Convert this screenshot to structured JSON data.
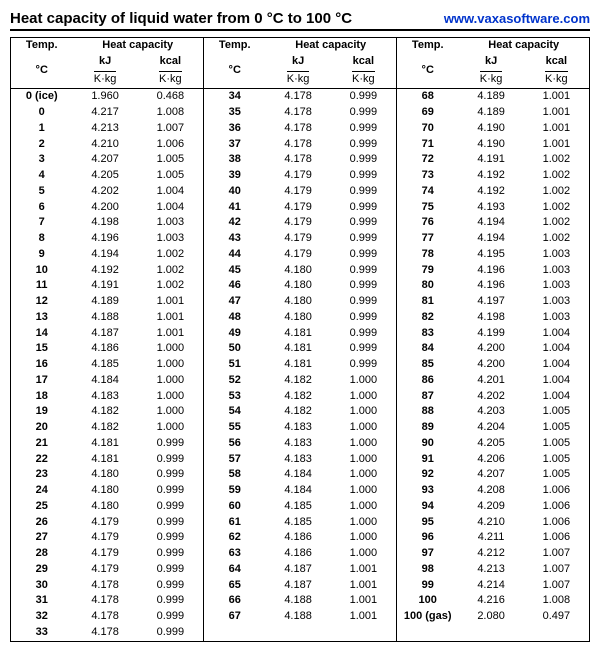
{
  "title": "Heat capacity of liquid water from 0 °C to 100 °C",
  "url": "www.vaxasoftware.com",
  "headers": {
    "temp": "Temp.",
    "heatcap": "Heat capacity",
    "degC": "°C",
    "kj": "kJ",
    "kcal": "kcal",
    "kkg": "K·kg"
  },
  "columns": [
    {
      "rows": [
        {
          "t": "0 (ice)",
          "kj": "1.960",
          "kcal": "0.468"
        },
        {
          "t": "0",
          "kj": "4.217",
          "kcal": "1.008"
        },
        {
          "t": "1",
          "kj": "4.213",
          "kcal": "1.007"
        },
        {
          "t": "2",
          "kj": "4.210",
          "kcal": "1.006"
        },
        {
          "t": "3",
          "kj": "4.207",
          "kcal": "1.005"
        },
        {
          "t": "4",
          "kj": "4.205",
          "kcal": "1.005"
        },
        {
          "t": "5",
          "kj": "4.202",
          "kcal": "1.004"
        },
        {
          "t": "6",
          "kj": "4.200",
          "kcal": "1.004"
        },
        {
          "t": "7",
          "kj": "4.198",
          "kcal": "1.003"
        },
        {
          "t": "8",
          "kj": "4.196",
          "kcal": "1.003"
        },
        {
          "t": "9",
          "kj": "4.194",
          "kcal": "1.002"
        },
        {
          "t": "10",
          "kj": "4.192",
          "kcal": "1.002"
        },
        {
          "t": "11",
          "kj": "4.191",
          "kcal": "1.002"
        },
        {
          "t": "12",
          "kj": "4.189",
          "kcal": "1.001"
        },
        {
          "t": "13",
          "kj": "4.188",
          "kcal": "1.001"
        },
        {
          "t": "14",
          "kj": "4.187",
          "kcal": "1.001"
        },
        {
          "t": "15",
          "kj": "4.186",
          "kcal": "1.000"
        },
        {
          "t": "16",
          "kj": "4.185",
          "kcal": "1.000"
        },
        {
          "t": "17",
          "kj": "4.184",
          "kcal": "1.000"
        },
        {
          "t": "18",
          "kj": "4.183",
          "kcal": "1.000"
        },
        {
          "t": "19",
          "kj": "4.182",
          "kcal": "1.000"
        },
        {
          "t": "20",
          "kj": "4.182",
          "kcal": "1.000"
        },
        {
          "t": "21",
          "kj": "4.181",
          "kcal": "0.999"
        },
        {
          "t": "22",
          "kj": "4.181",
          "kcal": "0.999"
        },
        {
          "t": "23",
          "kj": "4.180",
          "kcal": "0.999"
        },
        {
          "t": "24",
          "kj": "4.180",
          "kcal": "0.999"
        },
        {
          "t": "25",
          "kj": "4.180",
          "kcal": "0.999"
        },
        {
          "t": "26",
          "kj": "4.179",
          "kcal": "0.999"
        },
        {
          "t": "27",
          "kj": "4.179",
          "kcal": "0.999"
        },
        {
          "t": "28",
          "kj": "4.179",
          "kcal": "0.999"
        },
        {
          "t": "29",
          "kj": "4.179",
          "kcal": "0.999"
        },
        {
          "t": "30",
          "kj": "4.178",
          "kcal": "0.999"
        },
        {
          "t": "31",
          "kj": "4.178",
          "kcal": "0.999"
        },
        {
          "t": "32",
          "kj": "4.178",
          "kcal": "0.999"
        },
        {
          "t": "33",
          "kj": "4.178",
          "kcal": "0.999"
        }
      ]
    },
    {
      "rows": [
        {
          "t": "34",
          "kj": "4.178",
          "kcal": "0.999"
        },
        {
          "t": "35",
          "kj": "4.178",
          "kcal": "0.999"
        },
        {
          "t": "36",
          "kj": "4.178",
          "kcal": "0.999"
        },
        {
          "t": "37",
          "kj": "4.178",
          "kcal": "0.999"
        },
        {
          "t": "38",
          "kj": "4.178",
          "kcal": "0.999"
        },
        {
          "t": "39",
          "kj": "4.179",
          "kcal": "0.999"
        },
        {
          "t": "40",
          "kj": "4.179",
          "kcal": "0.999"
        },
        {
          "t": "41",
          "kj": "4.179",
          "kcal": "0.999"
        },
        {
          "t": "42",
          "kj": "4.179",
          "kcal": "0.999"
        },
        {
          "t": "43",
          "kj": "4.179",
          "kcal": "0.999"
        },
        {
          "t": "44",
          "kj": "4.179",
          "kcal": "0.999"
        },
        {
          "t": "45",
          "kj": "4.180",
          "kcal": "0.999"
        },
        {
          "t": "46",
          "kj": "4.180",
          "kcal": "0.999"
        },
        {
          "t": "47",
          "kj": "4.180",
          "kcal": "0.999"
        },
        {
          "t": "48",
          "kj": "4.180",
          "kcal": "0.999"
        },
        {
          "t": "49",
          "kj": "4.181",
          "kcal": "0.999"
        },
        {
          "t": "50",
          "kj": "4.181",
          "kcal": "0.999"
        },
        {
          "t": "51",
          "kj": "4.181",
          "kcal": "0.999"
        },
        {
          "t": "52",
          "kj": "4.182",
          "kcal": "1.000"
        },
        {
          "t": "53",
          "kj": "4.182",
          "kcal": "1.000"
        },
        {
          "t": "54",
          "kj": "4.182",
          "kcal": "1.000"
        },
        {
          "t": "55",
          "kj": "4.183",
          "kcal": "1.000"
        },
        {
          "t": "56",
          "kj": "4.183",
          "kcal": "1.000"
        },
        {
          "t": "57",
          "kj": "4.183",
          "kcal": "1.000"
        },
        {
          "t": "58",
          "kj": "4.184",
          "kcal": "1.000"
        },
        {
          "t": "59",
          "kj": "4.184",
          "kcal": "1.000"
        },
        {
          "t": "60",
          "kj": "4.185",
          "kcal": "1.000"
        },
        {
          "t": "61",
          "kj": "4.185",
          "kcal": "1.000"
        },
        {
          "t": "62",
          "kj": "4.186",
          "kcal": "1.000"
        },
        {
          "t": "63",
          "kj": "4.186",
          "kcal": "1.000"
        },
        {
          "t": "64",
          "kj": "4.187",
          "kcal": "1.001"
        },
        {
          "t": "65",
          "kj": "4.187",
          "kcal": "1.001"
        },
        {
          "t": "66",
          "kj": "4.188",
          "kcal": "1.001"
        },
        {
          "t": "67",
          "kj": "4.188",
          "kcal": "1.001"
        }
      ]
    },
    {
      "rows": [
        {
          "t": "68",
          "kj": "4.189",
          "kcal": "1.001"
        },
        {
          "t": "69",
          "kj": "4.189",
          "kcal": "1.001"
        },
        {
          "t": "70",
          "kj": "4.190",
          "kcal": "1.001"
        },
        {
          "t": "71",
          "kj": "4.190",
          "kcal": "1.001"
        },
        {
          "t": "72",
          "kj": "4.191",
          "kcal": "1.002"
        },
        {
          "t": "73",
          "kj": "4.192",
          "kcal": "1.002"
        },
        {
          "t": "74",
          "kj": "4.192",
          "kcal": "1.002"
        },
        {
          "t": "75",
          "kj": "4.193",
          "kcal": "1.002"
        },
        {
          "t": "76",
          "kj": "4.194",
          "kcal": "1.002"
        },
        {
          "t": "77",
          "kj": "4.194",
          "kcal": "1.002"
        },
        {
          "t": "78",
          "kj": "4.195",
          "kcal": "1.003"
        },
        {
          "t": "79",
          "kj": "4.196",
          "kcal": "1.003"
        },
        {
          "t": "80",
          "kj": "4.196",
          "kcal": "1.003"
        },
        {
          "t": "81",
          "kj": "4.197",
          "kcal": "1.003"
        },
        {
          "t": "82",
          "kj": "4.198",
          "kcal": "1.003"
        },
        {
          "t": "83",
          "kj": "4.199",
          "kcal": "1.004"
        },
        {
          "t": "84",
          "kj": "4.200",
          "kcal": "1.004"
        },
        {
          "t": "85",
          "kj": "4.200",
          "kcal": "1.004"
        },
        {
          "t": "86",
          "kj": "4.201",
          "kcal": "1.004"
        },
        {
          "t": "87",
          "kj": "4.202",
          "kcal": "1.004"
        },
        {
          "t": "88",
          "kj": "4.203",
          "kcal": "1.005"
        },
        {
          "t": "89",
          "kj": "4.204",
          "kcal": "1.005"
        },
        {
          "t": "90",
          "kj": "4.205",
          "kcal": "1.005"
        },
        {
          "t": "91",
          "kj": "4.206",
          "kcal": "1.005"
        },
        {
          "t": "92",
          "kj": "4.207",
          "kcal": "1.005"
        },
        {
          "t": "93",
          "kj": "4.208",
          "kcal": "1.006"
        },
        {
          "t": "94",
          "kj": "4.209",
          "kcal": "1.006"
        },
        {
          "t": "95",
          "kj": "4.210",
          "kcal": "1.006"
        },
        {
          "t": "96",
          "kj": "4.211",
          "kcal": "1.006"
        },
        {
          "t": "97",
          "kj": "4.212",
          "kcal": "1.007"
        },
        {
          "t": "98",
          "kj": "4.213",
          "kcal": "1.007"
        },
        {
          "t": "99",
          "kj": "4.214",
          "kcal": "1.007"
        },
        {
          "t": "100",
          "kj": "4.216",
          "kcal": "1.008"
        },
        {
          "t": "100 (gas)",
          "kj": "2.080",
          "kcal": "0.497"
        }
      ]
    }
  ]
}
